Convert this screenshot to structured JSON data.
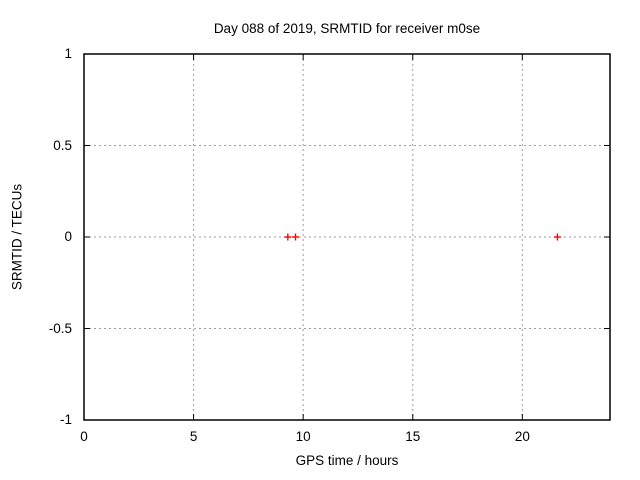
{
  "figure": {
    "background": "#ffffff"
  },
  "chart_data": {
    "type": "scatter",
    "title": "Day 088 of 2019, SRMTID for receiver m0se",
    "xlabel": "GPS time / hours",
    "ylabel": "SRMTID / TECUs",
    "xlim": [
      0,
      24
    ],
    "ylim": [
      -1,
      1
    ],
    "xticks": {
      "values": [
        0,
        5,
        10,
        15,
        20
      ],
      "labels": [
        "0",
        "5",
        "10",
        "15",
        "20"
      ]
    },
    "yticks": {
      "values": [
        -1,
        -0.5,
        0,
        0.5,
        1
      ],
      "labels": [
        "-1",
        "-0.5",
        "0",
        "0.5",
        "1"
      ]
    },
    "grid": true,
    "legend": "none",
    "series": [
      {
        "name": "SRMTID",
        "marker": "plus",
        "color": "#ff0000",
        "points": [
          [
            9.3,
            0
          ],
          [
            9.65,
            0
          ],
          [
            21.6,
            0
          ]
        ]
      }
    ],
    "colors": {
      "marker": "#ff0000",
      "grid": "#9e9e9e",
      "border": "#000000",
      "text": "#000000"
    }
  }
}
